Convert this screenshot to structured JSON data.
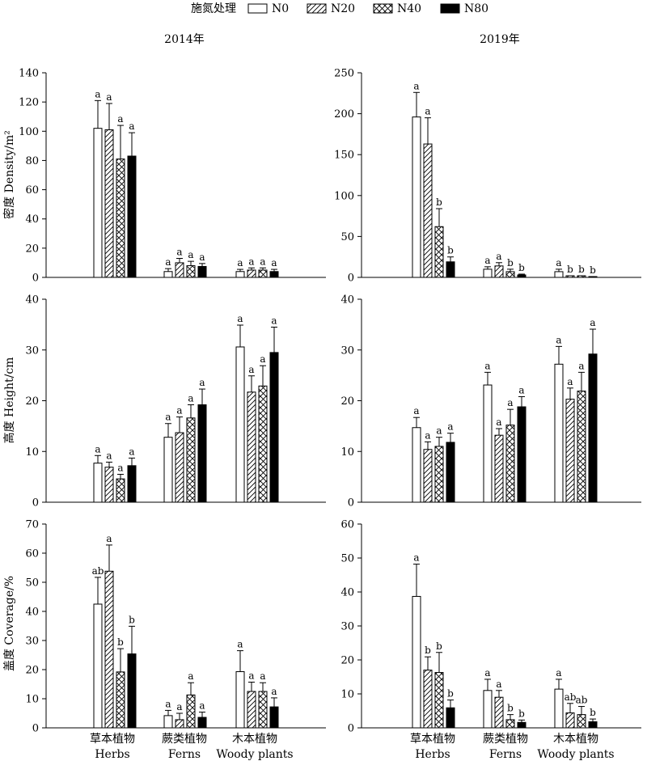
{
  "legend": {
    "title": "施氮处理",
    "items": [
      {
        "label": "N0",
        "pattern": "open"
      },
      {
        "label": "N20",
        "pattern": "hatch"
      },
      {
        "label": "N40",
        "pattern": "cross"
      },
      {
        "label": "N80",
        "pattern": "solid"
      }
    ]
  },
  "columns": {
    "left": "2014年",
    "right": "2019年"
  },
  "row_labels": {
    "density": "密度 Density/m²",
    "height": "高度 Height/cm",
    "coverage": "盖度 Coverage/%"
  },
  "categories": {
    "cn": [
      "草本植物",
      "蕨类植物",
      "木本植物"
    ],
    "en": [
      "Herbs",
      "Ferns",
      "Woody plants"
    ]
  },
  "chart_data": [
    {
      "type": "bar",
      "panel": "density-2014",
      "ylim": [
        0,
        140
      ],
      "yticks": [
        0,
        20,
        40,
        60,
        80,
        100,
        120,
        140
      ],
      "categories": [
        "Herbs",
        "Ferns",
        "Woody plants"
      ],
      "series": [
        {
          "name": "N0",
          "values": [
            102,
            4,
            4
          ],
          "errors": [
            19,
            2,
            1.5
          ],
          "letters": [
            "a",
            "a",
            "a"
          ]
        },
        {
          "name": "N20",
          "values": [
            101,
            10,
            5
          ],
          "errors": [
            18,
            3,
            1.5
          ],
          "letters": [
            "a",
            "a",
            "a"
          ]
        },
        {
          "name": "N40",
          "values": [
            81,
            8,
            5
          ],
          "errors": [
            23,
            3,
            1.5
          ],
          "letters": [
            "a",
            "a",
            "a"
          ]
        },
        {
          "name": "N80",
          "values": [
            83,
            7.5,
            4
          ],
          "errors": [
            16,
            2,
            1.5
          ],
          "letters": [
            "a",
            "a",
            "a"
          ]
        }
      ]
    },
    {
      "type": "bar",
      "panel": "density-2019",
      "ylim": [
        0,
        250
      ],
      "yticks": [
        0,
        50,
        100,
        150,
        200,
        250
      ],
      "categories": [
        "Herbs",
        "Ferns",
        "Woody plants"
      ],
      "series": [
        {
          "name": "N0",
          "values": [
            196,
            10,
            7
          ],
          "errors": [
            30,
            3,
            3
          ],
          "letters": [
            "a",
            "a",
            "a"
          ]
        },
        {
          "name": "N20",
          "values": [
            163,
            14,
            2
          ],
          "errors": [
            32,
            4,
            0
          ],
          "letters": [
            "a",
            "a",
            "b"
          ]
        },
        {
          "name": "N40",
          "values": [
            62,
            7,
            2
          ],
          "errors": [
            22,
            3,
            0
          ],
          "letters": [
            "b",
            "b",
            "b"
          ]
        },
        {
          "name": "N80",
          "values": [
            19,
            3,
            1
          ],
          "errors": [
            6,
            1,
            0
          ],
          "letters": [
            "b",
            "b",
            "b"
          ]
        }
      ]
    },
    {
      "type": "bar",
      "panel": "height-2014",
      "ylim": [
        0,
        40
      ],
      "yticks": [
        0,
        10,
        20,
        30,
        40
      ],
      "categories": [
        "Herbs",
        "Ferns",
        "Woody plants"
      ],
      "series": [
        {
          "name": "N0",
          "values": [
            7.7,
            12.8,
            30.6
          ],
          "errors": [
            1.5,
            2.7,
            4.3
          ],
          "letters": [
            "a",
            "a",
            "a"
          ]
        },
        {
          "name": "N20",
          "values": [
            6.9,
            13.7,
            21.7
          ],
          "errors": [
            1.0,
            3.1,
            3.2
          ],
          "letters": [
            "a",
            "a",
            "a"
          ]
        },
        {
          "name": "N40",
          "values": [
            4.6,
            16.6,
            22.9
          ],
          "errors": [
            0.9,
            2.6,
            4.0
          ],
          "letters": [
            "a",
            "a",
            "a"
          ]
        },
        {
          "name": "N80",
          "values": [
            7.2,
            19.2,
            29.5
          ],
          "errors": [
            1.5,
            3.1,
            5.0
          ],
          "letters": [
            "a",
            "a",
            "a"
          ]
        }
      ]
    },
    {
      "type": "bar",
      "panel": "height-2019",
      "ylim": [
        0,
        40
      ],
      "yticks": [
        0,
        10,
        20,
        30,
        40
      ],
      "categories": [
        "Herbs",
        "Ferns",
        "Woody plants"
      ],
      "series": [
        {
          "name": "N0",
          "values": [
            14.7,
            23.1,
            27.2
          ],
          "errors": [
            2.0,
            2.5,
            3.5
          ],
          "letters": [
            "a",
            "a",
            "a"
          ]
        },
        {
          "name": "N20",
          "values": [
            10.4,
            13.2,
            20.3
          ],
          "errors": [
            1.5,
            1.3,
            2.2
          ],
          "letters": [
            "a",
            "a",
            "a"
          ]
        },
        {
          "name": "N40",
          "values": [
            11.0,
            15.2,
            21.9
          ],
          "errors": [
            1.8,
            3.1,
            3.7
          ],
          "letters": [
            "a",
            "a",
            "a"
          ]
        },
        {
          "name": "N80",
          "values": [
            11.8,
            18.8,
            29.2
          ],
          "errors": [
            1.8,
            2.0,
            4.9
          ],
          "letters": [
            "a",
            "a",
            "a"
          ]
        }
      ]
    },
    {
      "type": "bar",
      "panel": "coverage-2014",
      "ylim": [
        0,
        70
      ],
      "yticks": [
        0,
        10,
        20,
        30,
        40,
        50,
        60,
        70
      ],
      "categories": [
        "Herbs",
        "Ferns",
        "Woody plants"
      ],
      "series": [
        {
          "name": "N0",
          "values": [
            42.5,
            4.2,
            19.3
          ],
          "errors": [
            9.2,
            1.8,
            7.2
          ],
          "letters": [
            "ab",
            "a",
            "a"
          ]
        },
        {
          "name": "N20",
          "values": [
            53.8,
            2.8,
            12.5
          ],
          "errors": [
            9.0,
            2.2,
            3.2
          ],
          "letters": [
            "a",
            "a",
            "a"
          ]
        },
        {
          "name": "N40",
          "values": [
            19.2,
            11.3,
            12.5
          ],
          "errors": [
            8.0,
            4.2,
            3.0
          ],
          "letters": [
            "b",
            "a",
            "a"
          ]
        },
        {
          "name": "N80",
          "values": [
            25.4,
            3.6,
            7.2
          ],
          "errors": [
            9.5,
            1.8,
            3.1
          ],
          "letters": [
            "b",
            "a",
            "a"
          ]
        }
      ]
    },
    {
      "type": "bar",
      "panel": "coverage-2019",
      "ylim": [
        0,
        60
      ],
      "yticks": [
        0,
        10,
        20,
        30,
        40,
        50,
        60
      ],
      "categories": [
        "Herbs",
        "Ferns",
        "Woody plants"
      ],
      "series": [
        {
          "name": "N0",
          "values": [
            38.7,
            11.0,
            11.4
          ],
          "errors": [
            9.5,
            3.3,
            2.9
          ],
          "letters": [
            "a",
            "a",
            "a"
          ]
        },
        {
          "name": "N20",
          "values": [
            17.0,
            9.0,
            4.4
          ],
          "errors": [
            3.9,
            2.0,
            2.8
          ],
          "letters": [
            "b",
            "a",
            "ab"
          ]
        },
        {
          "name": "N40",
          "values": [
            16.3,
            2.4,
            3.9
          ],
          "errors": [
            5.9,
            1.5,
            2.4
          ],
          "letters": [
            "b",
            "b",
            "ab"
          ]
        },
        {
          "name": "N80",
          "values": [
            5.9,
            1.6,
            1.8
          ],
          "errors": [
            2.3,
            0.7,
            0.8
          ],
          "letters": [
            "b",
            "b",
            "b"
          ]
        }
      ]
    }
  ]
}
